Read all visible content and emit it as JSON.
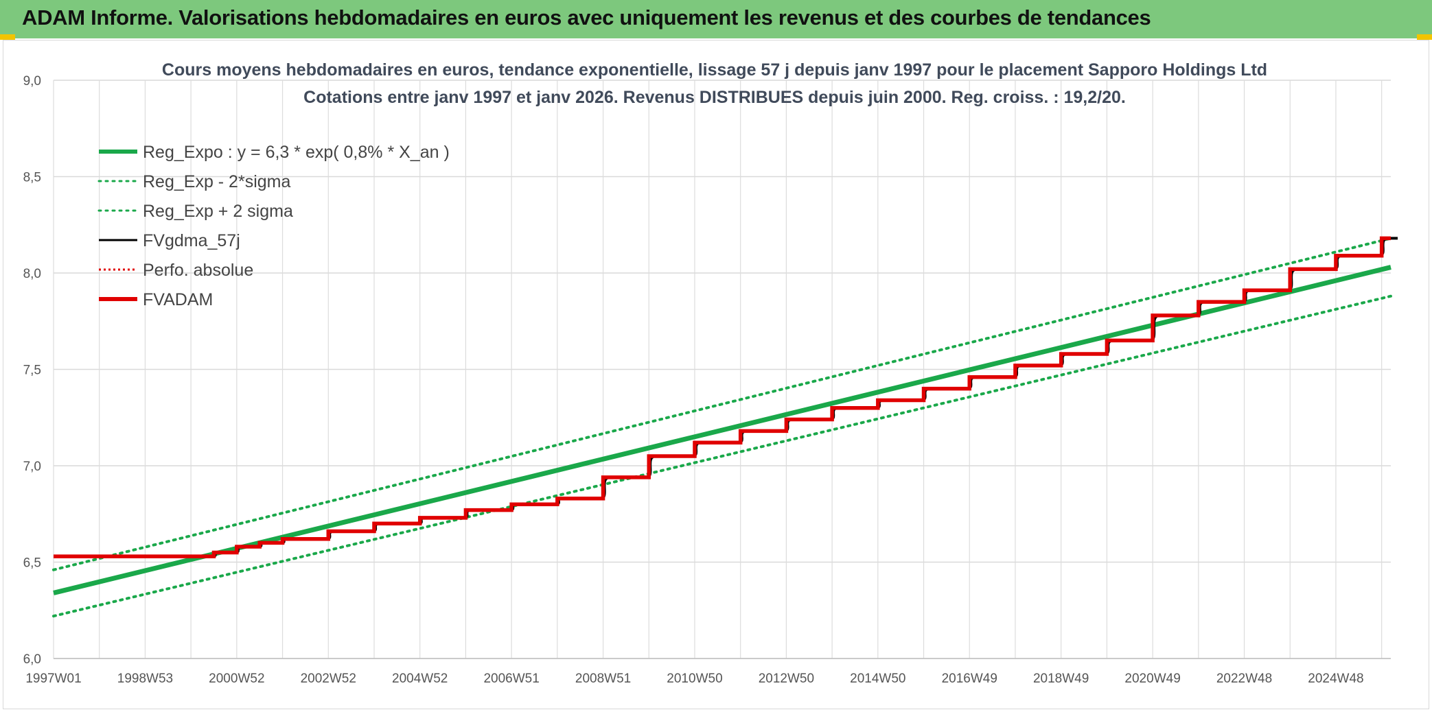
{
  "header": {
    "title": "ADAM Informe. Valorisations hebdomadaires en euros avec uniquement les revenus et des courbes de tendances"
  },
  "chart_data": {
    "type": "line",
    "title_lines": [
      "Cours moyens hebdomadaires en euros, tendance exponentielle, lissage 57 j depuis janv 1997 pour le placement Sapporo Holdings Ltd",
      "Cotations entre janv 1997 et janv 2026. Revenus DISTRIBUES depuis juin 2000. Reg. croiss. : 19,2/20."
    ],
    "ylim": [
      6.0,
      9.0
    ],
    "y_ticks": [
      "6,0",
      "6,5",
      "7,0",
      "7,5",
      "8,0",
      "8,5",
      "9,0"
    ],
    "xlim": [
      1997.0,
      2026.2
    ],
    "x_ticks": [
      {
        "label": "1997W01",
        "x": 1997.0
      },
      {
        "label": "1998W53",
        "x": 1999.0
      },
      {
        "label": "2000W52",
        "x": 2001.0
      },
      {
        "label": "2002W52",
        "x": 2003.0
      },
      {
        "label": "2004W52",
        "x": 2005.0
      },
      {
        "label": "2006W51",
        "x": 2007.0
      },
      {
        "label": "2008W51",
        "x": 2009.0
      },
      {
        "label": "2010W50",
        "x": 2011.0
      },
      {
        "label": "2012W50",
        "x": 2013.0
      },
      {
        "label": "2014W50",
        "x": 2015.0
      },
      {
        "label": "2016W49",
        "x": 2017.0
      },
      {
        "label": "2018W49",
        "x": 2019.0
      },
      {
        "label": "2020W49",
        "x": 2021.0
      },
      {
        "label": "2022W48",
        "x": 2023.0
      },
      {
        "label": "2024W48",
        "x": 2025.0
      }
    ],
    "grid": true,
    "legend_position": "top-left",
    "series": [
      {
        "name": "Reg_Expo : y = 6,3 * exp( 0,8% *  X_an )",
        "color": "#1aa84a",
        "style": "solid-thick",
        "x": [
          1997.0,
          2026.2
        ],
        "y": [
          6.34,
          8.03
        ]
      },
      {
        "name": "Reg_Exp - 2*sigma",
        "color": "#1aa84a",
        "style": "dotted",
        "x": [
          1997.0,
          2026.2
        ],
        "y": [
          6.22,
          7.88
        ]
      },
      {
        "name": "Reg_Exp + 2 sigma",
        "color": "#1aa84a",
        "style": "dotted",
        "x": [
          1997.0,
          2026.2
        ],
        "y": [
          6.46,
          8.18
        ]
      },
      {
        "name": "FVgdma_57j",
        "color": "#000000",
        "style": "solid"
      },
      {
        "name": "Perfo. absolue",
        "color": "#e00000",
        "style": "dotted-thin"
      },
      {
        "name": "FVADAM",
        "color": "#e00000",
        "style": "solid-thick",
        "steps": [
          {
            "x": 1997.0,
            "y": 6.53
          },
          {
            "x": 2000.5,
            "y": 6.55
          },
          {
            "x": 2001.0,
            "y": 6.58
          },
          {
            "x": 2001.5,
            "y": 6.6
          },
          {
            "x": 2002.0,
            "y": 6.62
          },
          {
            "x": 2003.0,
            "y": 6.66
          },
          {
            "x": 2004.0,
            "y": 6.7
          },
          {
            "x": 2005.0,
            "y": 6.73
          },
          {
            "x": 2006.0,
            "y": 6.77
          },
          {
            "x": 2007.0,
            "y": 6.8
          },
          {
            "x": 2008.0,
            "y": 6.83
          },
          {
            "x": 2009.0,
            "y": 6.94
          },
          {
            "x": 2010.0,
            "y": 7.05
          },
          {
            "x": 2011.0,
            "y": 7.12
          },
          {
            "x": 2012.0,
            "y": 7.18
          },
          {
            "x": 2013.0,
            "y": 7.24
          },
          {
            "x": 2014.0,
            "y": 7.3
          },
          {
            "x": 2015.0,
            "y": 7.34
          },
          {
            "x": 2016.0,
            "y": 7.4
          },
          {
            "x": 2017.0,
            "y": 7.46
          },
          {
            "x": 2018.0,
            "y": 7.52
          },
          {
            "x": 2019.0,
            "y": 7.58
          },
          {
            "x": 2020.0,
            "y": 7.65
          },
          {
            "x": 2021.0,
            "y": 7.78
          },
          {
            "x": 2022.0,
            "y": 7.85
          },
          {
            "x": 2023.0,
            "y": 7.91
          },
          {
            "x": 2024.0,
            "y": 8.02
          },
          {
            "x": 2025.0,
            "y": 8.09
          },
          {
            "x": 2026.0,
            "y": 8.18
          }
        ]
      }
    ]
  }
}
